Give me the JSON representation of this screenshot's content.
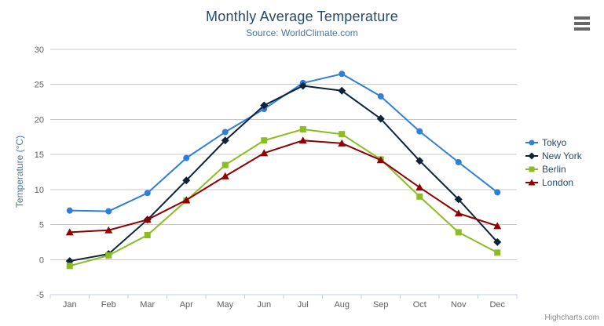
{
  "credits": {
    "label": "Highcharts.com"
  },
  "icons": {
    "export_menu": "hamburger-icon"
  },
  "chart_data": {
    "type": "line",
    "title": "Monthly Average Temperature",
    "subtitle": "Source: WorldClimate.com",
    "xlabel": "",
    "ylabel": "Temperature (°C)",
    "categories": [
      "Jan",
      "Feb",
      "Mar",
      "Apr",
      "May",
      "Jun",
      "Jul",
      "Aug",
      "Sep",
      "Oct",
      "Nov",
      "Dec"
    ],
    "ylim": [
      -5,
      30
    ],
    "y_ticks": [
      30,
      25,
      20,
      15,
      10,
      5,
      0,
      -5
    ],
    "grid": "horizontal",
    "legend_position": "right-middle",
    "series": [
      {
        "name": "Tokyo",
        "color": "#2f7ed8",
        "marker": "circle",
        "values": [
          7.0,
          6.9,
          9.5,
          14.5,
          18.2,
          21.5,
          25.2,
          26.5,
          23.3,
          18.3,
          13.9,
          9.6
        ]
      },
      {
        "name": "New York",
        "color": "#0d233a",
        "marker": "diamond",
        "values": [
          -0.2,
          0.8,
          5.7,
          11.3,
          17.0,
          22.0,
          24.8,
          24.1,
          20.1,
          14.1,
          8.6,
          2.5
        ]
      },
      {
        "name": "Berlin",
        "color": "#8bbc21",
        "marker": "square",
        "values": [
          -0.9,
          0.6,
          3.5,
          8.4,
          13.5,
          17.0,
          18.6,
          17.9,
          14.3,
          9.0,
          3.9,
          1.0
        ]
      },
      {
        "name": "London",
        "color": "#910000",
        "marker": "triangle",
        "values": [
          3.9,
          4.2,
          5.7,
          8.5,
          11.9,
          15.2,
          17.0,
          16.6,
          14.2,
          10.3,
          6.6,
          4.8
        ]
      }
    ],
    "axis_colors": {
      "grid_line": "#c8c8c8",
      "axis_line": "#c0d0e0",
      "tick": "#c0d0e0"
    }
  }
}
